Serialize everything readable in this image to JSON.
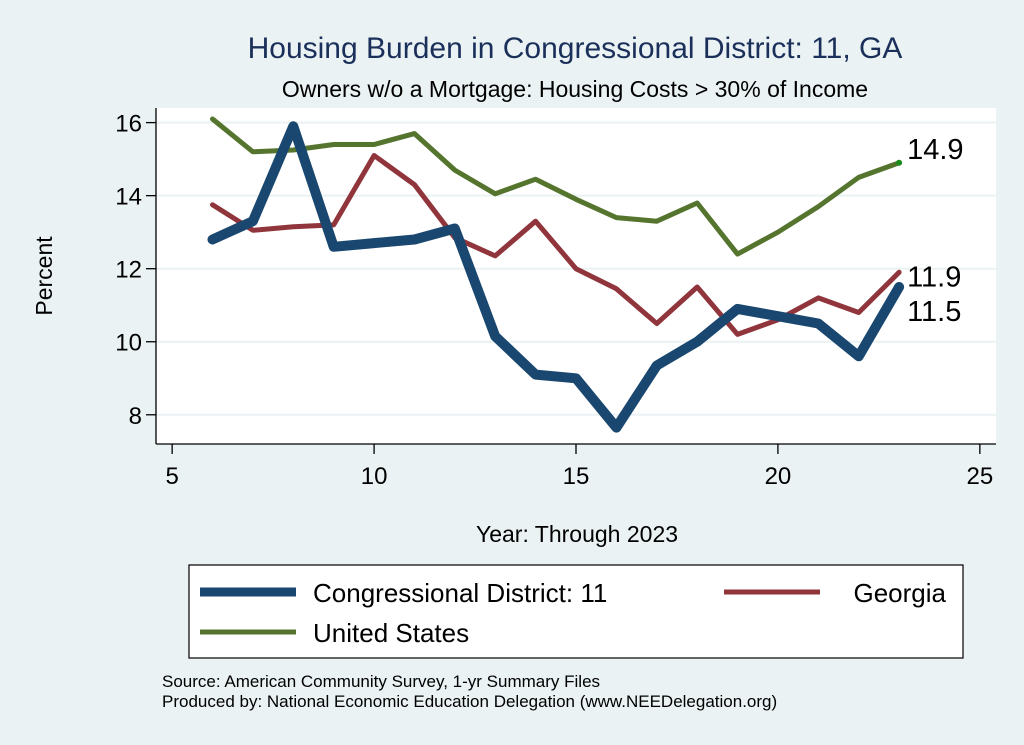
{
  "chart_data": {
    "type": "line",
    "title": "Housing Burden in Congressional District:  11, GA",
    "subtitle": "Owners w/o a Mortgage: Housing Costs > 30% of Income",
    "xlabel": "Year: Through 2023",
    "ylabel": "Percent",
    "xlim": [
      4.6,
      25.4
    ],
    "ylim": [
      7.2,
      16.4
    ],
    "xticks": [
      5,
      10,
      15,
      20,
      25
    ],
    "yticks": [
      8,
      10,
      12,
      14,
      16
    ],
    "grid": true,
    "legend_position": "bottom",
    "x": [
      6,
      7,
      8,
      9,
      10,
      11,
      12,
      13,
      14,
      15,
      16,
      17,
      18,
      19,
      20,
      21,
      22,
      23
    ],
    "series": [
      {
        "name": "Congressional District:  11",
        "color": "#1a476f",
        "values": [
          12.8,
          13.3,
          15.9,
          12.6,
          12.7,
          12.8,
          13.1,
          10.15,
          9.1,
          9.0,
          7.65,
          9.35,
          10.0,
          10.9,
          10.7,
          10.5,
          9.6,
          11.5
        ],
        "end_label": "11.5"
      },
      {
        "name": "Georgia",
        "color": "#90353b",
        "values": [
          13.75,
          13.05,
          13.15,
          13.2,
          15.1,
          14.3,
          12.85,
          12.35,
          13.3,
          12.0,
          11.45,
          10.5,
          11.5,
          10.2,
          10.6,
          11.2,
          10.8,
          11.9
        ],
        "end_label": "11.9"
      },
      {
        "name": "United States",
        "color": "#55752f",
        "values": [
          16.1,
          15.2,
          15.25,
          15.4,
          15.4,
          15.7,
          14.7,
          14.05,
          14.45,
          13.9,
          13.4,
          13.3,
          13.8,
          12.4,
          13.0,
          13.7,
          14.5,
          14.9
        ],
        "end_label": "14.9"
      }
    ],
    "notes": [
      "Source: American Community Survey, 1-yr Summary Files",
      "Produced by: National Economic Education Delegation (www.NEEDelegation.org)"
    ]
  }
}
